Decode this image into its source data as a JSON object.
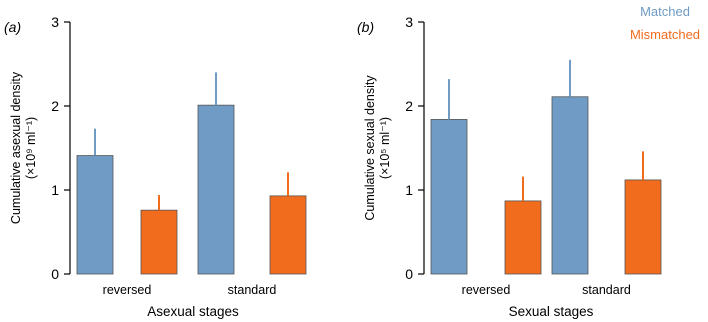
{
  "colors": {
    "matched": "#6f9bc4",
    "mismatched": "#f26c1d",
    "axis": "#000000"
  },
  "legend": {
    "matched": "Matched",
    "mismatched": "Mismatched"
  },
  "chart_data": [
    {
      "type": "bar",
      "panel_label": "(a)",
      "categories": [
        "reversed",
        "standard"
      ],
      "series": [
        {
          "name": "Matched",
          "values": [
            1.41,
            2.01
          ],
          "error": [
            0.32,
            0.39
          ]
        },
        {
          "name": "Mismatched",
          "values": [
            0.76,
            0.93
          ],
          "error": [
            0.18,
            0.28
          ]
        }
      ],
      "xlabel": "Asexual stages",
      "ylabel_line1": "Cumulative asexual density",
      "ylabel_line2": "(×10⁹ ml⁻¹)",
      "ylim": [
        0,
        3
      ],
      "yticks": [
        0,
        1,
        2,
        3
      ],
      "legend": "none"
    },
    {
      "type": "bar",
      "panel_label": "(b)",
      "categories": [
        "reversed",
        "standard"
      ],
      "series": [
        {
          "name": "Matched",
          "values": [
            1.84,
            2.11
          ],
          "error": [
            0.48,
            0.44
          ]
        },
        {
          "name": "Mismatched",
          "values": [
            0.87,
            1.12
          ],
          "error": [
            0.29,
            0.34
          ]
        }
      ],
      "xlabel": "Sexual stages",
      "ylabel_line1": "Cumulative sexual density",
      "ylabel_line2": "(×10⁵ ml⁻¹)",
      "ylim": [
        0,
        3
      ],
      "yticks": [
        0,
        1,
        2,
        3
      ],
      "legend": "top-right"
    }
  ]
}
